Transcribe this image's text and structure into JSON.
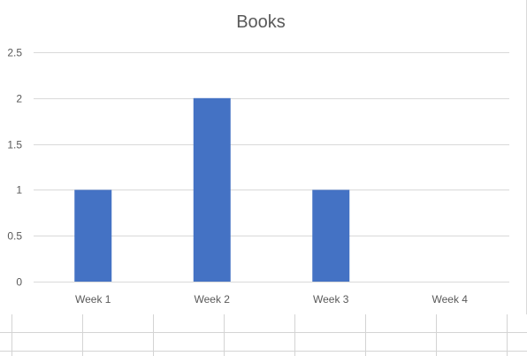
{
  "chart_data": {
    "type": "bar",
    "title": "Books",
    "xlabel": "",
    "ylabel": "",
    "categories": [
      "Week 1",
      "Week 2",
      "Week 3",
      "Week 4"
    ],
    "values": [
      1,
      2,
      1,
      0
    ],
    "ylim": [
      0,
      2.5
    ],
    "yticks": [
      "0",
      "0.5",
      "1",
      "1.5",
      "2",
      "2.5"
    ],
    "grid": true,
    "legend": "none",
    "bar_color": "#4472C4",
    "gridline_color": "#D9D9D9",
    "text_color": "#595959"
  }
}
